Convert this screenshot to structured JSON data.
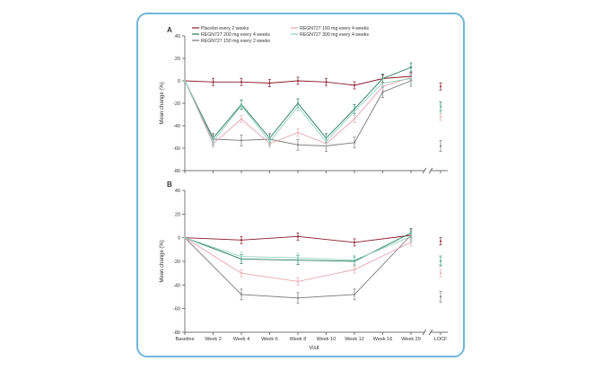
{
  "chart_data": [
    {
      "type": "line",
      "panel": "A",
      "xlabel": "",
      "ylabel": "Mean change (%)",
      "ylim": [
        -80,
        40
      ],
      "yticks": [
        40,
        20,
        0,
        -20,
        -40,
        -60,
        -80
      ],
      "categories": [
        "Baseline",
        "Week 2",
        "Week 4",
        "Week 6",
        "Week 8",
        "Week 10",
        "Week 12",
        "Week 16",
        "Week 20",
        "LOCF"
      ],
      "show_x_tick_labels": false,
      "legend": [
        "Placebo every 2 weeks",
        "REGN727 200 mg every 4 weeks",
        "REGN727 150 mg every 2 weeks",
        "REGN727 150 mg every 4 weeks",
        "REGN727 300 mg every 4 weeks"
      ],
      "series": [
        {
          "name": "Placebo every 2 weeks",
          "color": "#8b1a2b",
          "values": [
            0,
            -1,
            -1,
            -2,
            0,
            -1,
            -4,
            2,
            4,
            -5
          ]
        },
        {
          "name": "REGN727 200 mg every 4 weeks",
          "color": "#1f7a55",
          "values": [
            0,
            -51,
            -21,
            -51,
            -20,
            -51,
            -25,
            2,
            12,
            -23
          ]
        },
        {
          "name": "REGN727 150 mg every 2 weeks",
          "color": "#777777",
          "values": [
            0,
            -52,
            -53,
            -52,
            -57,
            -58,
            -55,
            -10,
            0,
            -58
          ]
        },
        {
          "name": "REGN727 150 mg every 4 weeks",
          "color": "#e8a6ae",
          "values": [
            0,
            -56,
            -34,
            -56,
            -46,
            -56,
            -34,
            -5,
            3,
            -32
          ]
        },
        {
          "name": "REGN727 300 mg every 4 weeks",
          "color": "#8fd0bd",
          "values": [
            0,
            -54,
            -22,
            -54,
            -23,
            -54,
            -27,
            -2,
            2,
            -25
          ]
        }
      ]
    },
    {
      "type": "line",
      "panel": "B",
      "xlabel": "Visit",
      "ylabel": "Mean change (%)",
      "ylim": [
        -80,
        40
      ],
      "yticks": [
        40,
        20,
        0,
        -20,
        -40,
        -60,
        -80
      ],
      "categories": [
        "Baseline",
        "Week 2",
        "Week 4",
        "Week 6",
        "Week 8",
        "Week 10",
        "Week 12",
        "Week 16",
        "Week 20",
        "LOCF"
      ],
      "show_x_tick_labels": true,
      "series": [
        {
          "name": "Placebo every 2 weeks",
          "color": "#8b1a2b",
          "values": [
            0,
            null,
            -2,
            null,
            1,
            null,
            -4,
            null,
            2,
            -3
          ]
        },
        {
          "name": "REGN727 200 mg every 4 weeks",
          "color": "#1f7a55",
          "values": [
            0,
            null,
            -18,
            null,
            -19,
            null,
            -20,
            null,
            4,
            -20
          ]
        },
        {
          "name": "REGN727 150 mg every 2 weeks",
          "color": "#777777",
          "values": [
            0,
            null,
            -48,
            null,
            -51,
            null,
            -48,
            null,
            2,
            -50
          ]
        },
        {
          "name": "REGN727 150 mg every 4 weeks",
          "color": "#e8a6ae",
          "values": [
            0,
            null,
            -30,
            null,
            -37,
            null,
            -27,
            null,
            -4,
            -30
          ]
        },
        {
          "name": "REGN727 300 mg every 4 weeks",
          "color": "#8fd0bd",
          "values": [
            0,
            null,
            -16,
            null,
            -17,
            null,
            -19,
            null,
            1,
            -19
          ]
        }
      ]
    }
  ]
}
